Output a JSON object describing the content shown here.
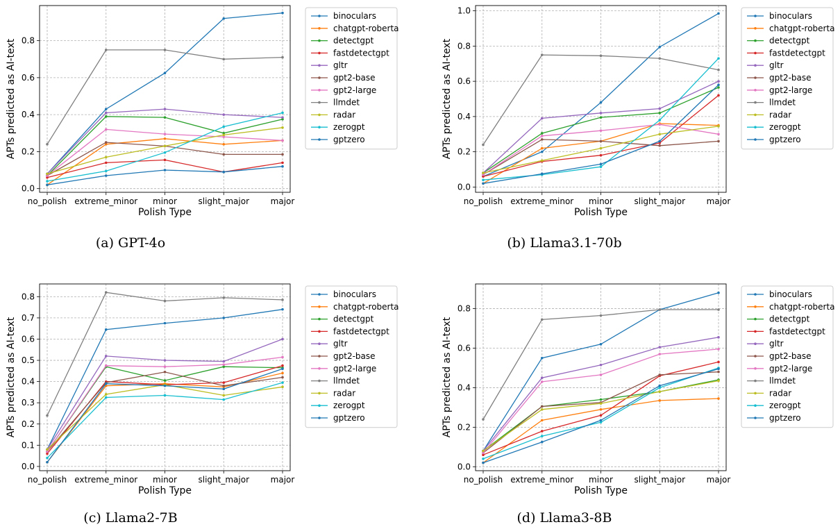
{
  "figure": {
    "categories": [
      "no_polish",
      "extreme_minor",
      "minor",
      "slight_major",
      "major"
    ],
    "xlabel": "Polish Type",
    "ylabel": "APTs predicted as AI-text",
    "colors": {
      "binoculars": "#1f77b4",
      "chatgpt-roberta": "#ff7f0e",
      "detectgpt": "#2ca02c",
      "fastdetectgpt": "#d62728",
      "gltr": "#9467bd",
      "gpt2-base": "#8c564b",
      "gpt2-large": "#e377c2",
      "llmdet": "#7f7f7f",
      "radar": "#bcbd22",
      "zerogpt": "#17becf",
      "gptzero": "#1f77b4"
    }
  },
  "chart_data": [
    {
      "type": "line",
      "caption": "(a) GPT-4o",
      "xlabel": "Polish Type",
      "ylabel": "APTs predicted as AI-text",
      "categories": [
        "no_polish",
        "extreme_minor",
        "minor",
        "slight_major",
        "major"
      ],
      "ylim": [
        -0.02,
        0.99
      ],
      "yticks": [
        0.0,
        0.2,
        0.4,
        0.6,
        0.8
      ],
      "grid": true,
      "legend": "outside-right",
      "series": [
        {
          "name": "binoculars",
          "values": [
            0.08,
            0.43,
            0.625,
            0.92,
            0.95
          ]
        },
        {
          "name": "chatgpt-roberta",
          "values": [
            0.02,
            0.24,
            0.27,
            0.24,
            0.26
          ]
        },
        {
          "name": "detectgpt",
          "values": [
            0.07,
            0.39,
            0.385,
            0.3,
            0.375
          ]
        },
        {
          "name": "fastdetectgpt",
          "values": [
            0.06,
            0.14,
            0.155,
            0.09,
            0.14
          ]
        },
        {
          "name": "gltr",
          "values": [
            0.08,
            0.41,
            0.43,
            0.4,
            0.385
          ]
        },
        {
          "name": "gpt2-base",
          "values": [
            0.07,
            0.25,
            0.23,
            0.185,
            0.185
          ]
        },
        {
          "name": "gpt2-large",
          "values": [
            0.07,
            0.32,
            0.295,
            0.28,
            0.26
          ]
        },
        {
          "name": "llmdet",
          "values": [
            0.24,
            0.75,
            0.75,
            0.7,
            0.71
          ]
        },
        {
          "name": "radar",
          "values": [
            0.08,
            0.17,
            0.23,
            0.29,
            0.33
          ]
        },
        {
          "name": "zerogpt",
          "values": [
            0.04,
            0.095,
            0.195,
            0.335,
            0.41
          ]
        },
        {
          "name": "gptzero",
          "values": [
            0.02,
            0.07,
            0.1,
            0.09,
            0.12
          ]
        }
      ]
    },
    {
      "type": "line",
      "caption": "(b) Llama3.1-70b",
      "xlabel": "Polish Type",
      "ylabel": "APTs predicted as AI-text",
      "categories": [
        "no_polish",
        "extreme_minor",
        "minor",
        "slight_major",
        "major"
      ],
      "ylim": [
        -0.03,
        1.03
      ],
      "yticks": [
        0.0,
        0.2,
        0.4,
        0.6,
        0.8,
        1.0
      ],
      "grid": true,
      "legend": "outside-right",
      "series": [
        {
          "name": "binoculars",
          "values": [
            0.06,
            0.2,
            0.48,
            0.795,
            0.985
          ]
        },
        {
          "name": "chatgpt-roberta",
          "values": [
            0.02,
            0.22,
            0.26,
            0.36,
            0.35
          ]
        },
        {
          "name": "detectgpt",
          "values": [
            0.08,
            0.305,
            0.395,
            0.42,
            0.565
          ]
        },
        {
          "name": "fastdetectgpt",
          "values": [
            0.06,
            0.145,
            0.18,
            0.25,
            0.52
          ]
        },
        {
          "name": "gltr",
          "values": [
            0.08,
            0.39,
            0.42,
            0.445,
            0.6
          ]
        },
        {
          "name": "gpt2-base",
          "values": [
            0.07,
            0.27,
            0.26,
            0.235,
            0.26
          ]
        },
        {
          "name": "gpt2-large",
          "values": [
            0.07,
            0.29,
            0.32,
            0.355,
            0.3
          ]
        },
        {
          "name": "llmdet",
          "values": [
            0.24,
            0.75,
            0.745,
            0.73,
            0.665
          ]
        },
        {
          "name": "radar",
          "values": [
            0.08,
            0.15,
            0.22,
            0.3,
            0.345
          ]
        },
        {
          "name": "zerogpt",
          "values": [
            0.04,
            0.07,
            0.115,
            0.38,
            0.73
          ]
        },
        {
          "name": "gptzero",
          "values": [
            0.02,
            0.075,
            0.13,
            0.26,
            0.58
          ]
        }
      ]
    },
    {
      "type": "line",
      "caption": "(c) Llama2-7B",
      "xlabel": "Polish Type",
      "ylabel": "APTs predicted as AI-text",
      "categories": [
        "no_polish",
        "extreme_minor",
        "minor",
        "slight_major",
        "major"
      ],
      "ylim": [
        -0.02,
        0.86
      ],
      "yticks": [
        0.0,
        0.1,
        0.2,
        0.3,
        0.4,
        0.5,
        0.6,
        0.7,
        0.8
      ],
      "grid": true,
      "legend": "outside-right",
      "series": [
        {
          "name": "binoculars",
          "values": [
            0.08,
            0.645,
            0.675,
            0.7,
            0.74
          ]
        },
        {
          "name": "chatgpt-roberta",
          "values": [
            0.02,
            0.38,
            0.39,
            0.375,
            0.44
          ]
        },
        {
          "name": "detectgpt",
          "values": [
            0.07,
            0.47,
            0.405,
            0.47,
            0.465
          ]
        },
        {
          "name": "fastdetectgpt",
          "values": [
            0.06,
            0.4,
            0.385,
            0.395,
            0.475
          ]
        },
        {
          "name": "gltr",
          "values": [
            0.08,
            0.52,
            0.5,
            0.495,
            0.6
          ]
        },
        {
          "name": "gpt2-base",
          "values": [
            0.07,
            0.395,
            0.445,
            0.38,
            0.42
          ]
        },
        {
          "name": "gpt2-large",
          "values": [
            0.07,
            0.475,
            0.47,
            0.48,
            0.515
          ]
        },
        {
          "name": "llmdet",
          "values": [
            0.24,
            0.82,
            0.78,
            0.795,
            0.785
          ]
        },
        {
          "name": "radar",
          "values": [
            0.08,
            0.34,
            0.385,
            0.335,
            0.375
          ]
        },
        {
          "name": "zerogpt",
          "values": [
            0.04,
            0.325,
            0.335,
            0.315,
            0.395
          ]
        },
        {
          "name": "gptzero",
          "values": [
            0.02,
            0.39,
            0.38,
            0.365,
            0.46
          ]
        }
      ]
    },
    {
      "type": "line",
      "caption": "(d) Llama3-8B",
      "xlabel": "Polish Type",
      "ylabel": "APTs predicted as AI-text",
      "categories": [
        "no_polish",
        "extreme_minor",
        "minor",
        "slight_major",
        "major"
      ],
      "ylim": [
        -0.02,
        0.925
      ],
      "yticks": [
        0.0,
        0.2,
        0.4,
        0.6,
        0.8
      ],
      "grid": true,
      "legend": "outside-right",
      "series": [
        {
          "name": "binoculars",
          "values": [
            0.08,
            0.55,
            0.62,
            0.795,
            0.88
          ]
        },
        {
          "name": "chatgpt-roberta",
          "values": [
            0.02,
            0.235,
            0.29,
            0.335,
            0.345
          ]
        },
        {
          "name": "detectgpt",
          "values": [
            0.08,
            0.305,
            0.34,
            0.38,
            0.44
          ]
        },
        {
          "name": "fastdetectgpt",
          "values": [
            0.06,
            0.18,
            0.26,
            0.46,
            0.53
          ]
        },
        {
          "name": "gltr",
          "values": [
            0.08,
            0.45,
            0.515,
            0.605,
            0.655
          ]
        },
        {
          "name": "gpt2-base",
          "values": [
            0.07,
            0.305,
            0.325,
            0.465,
            0.48
          ]
        },
        {
          "name": "gpt2-large",
          "values": [
            0.07,
            0.43,
            0.465,
            0.57,
            0.595
          ]
        },
        {
          "name": "llmdet",
          "values": [
            0.24,
            0.745,
            0.765,
            0.795,
            0.795
          ]
        },
        {
          "name": "radar",
          "values": [
            0.08,
            0.29,
            0.32,
            0.38,
            0.435
          ]
        },
        {
          "name": "zerogpt",
          "values": [
            0.04,
            0.155,
            0.225,
            0.4,
            0.5
          ]
        },
        {
          "name": "gptzero",
          "values": [
            0.02,
            0.125,
            0.235,
            0.41,
            0.495
          ]
        }
      ]
    }
  ]
}
